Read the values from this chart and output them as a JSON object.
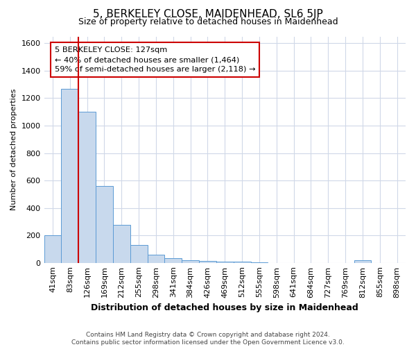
{
  "title": "5, BERKELEY CLOSE, MAIDENHEAD, SL6 5JP",
  "subtitle": "Size of property relative to detached houses in Maidenhead",
  "xlabel": "Distribution of detached houses by size in Maidenhead",
  "ylabel": "Number of detached properties",
  "footer_line1": "Contains HM Land Registry data © Crown copyright and database right 2024.",
  "footer_line2": "Contains public sector information licensed under the Open Government Licence v3.0.",
  "bar_color": "#c8d9ed",
  "bar_edge_color": "#5b9bd5",
  "vline_color": "#cc0000",
  "vline_x": 2,
  "annotation_line1": "5 BERKELEY CLOSE: 127sqm",
  "annotation_line2": "← 40% of detached houses are smaller (1,464)",
  "annotation_line3": "59% of semi-detached houses are larger (2,118) →",
  "ylim": [
    0,
    1650
  ],
  "yticks": [
    0,
    200,
    400,
    600,
    800,
    1000,
    1200,
    1400,
    1600
  ],
  "bins": [
    "41sqm",
    "83sqm",
    "126sqm",
    "169sqm",
    "212sqm",
    "255sqm",
    "298sqm",
    "341sqm",
    "384sqm",
    "426sqm",
    "469sqm",
    "512sqm",
    "555sqm",
    "598sqm",
    "641sqm",
    "684sqm",
    "727sqm",
    "769sqm",
    "812sqm",
    "855sqm",
    "898sqm"
  ],
  "values": [
    200,
    1270,
    1100,
    560,
    275,
    130,
    60,
    35,
    20,
    15,
    10,
    8,
    5,
    0,
    0,
    0,
    0,
    0,
    20,
    0,
    0
  ],
  "background_color": "#ffffff",
  "grid_color": "#d0d8e8",
  "title_fontsize": 11,
  "subtitle_fontsize": 9,
  "axis_label_fontsize": 9,
  "ylabel_fontsize": 8,
  "tick_fontsize": 8,
  "footer_fontsize": 6.5
}
